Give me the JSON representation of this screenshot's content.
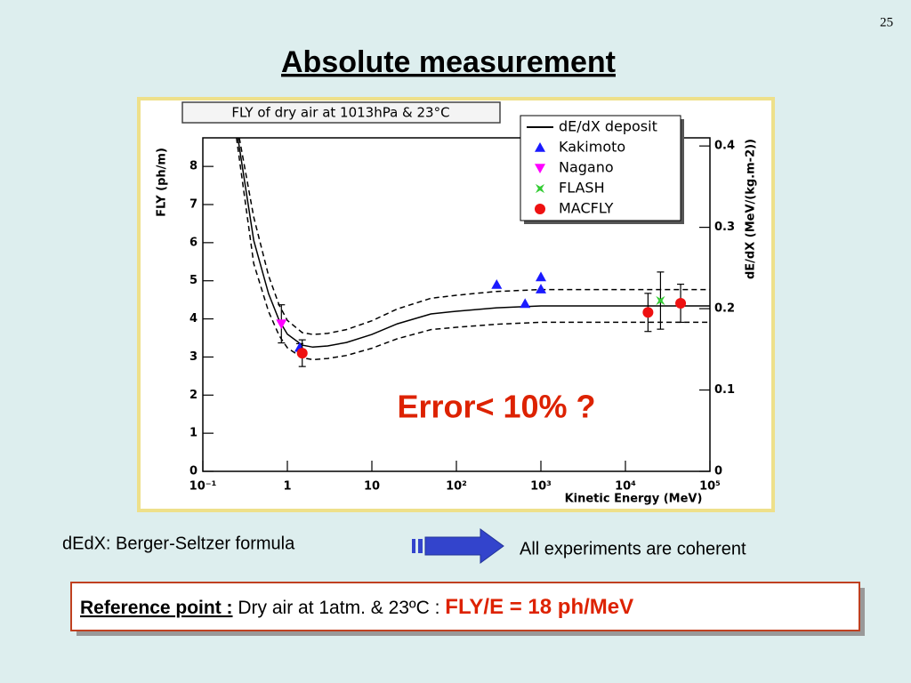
{
  "slide": {
    "page_number": "25",
    "title": "Absolute measurement",
    "left_note": "dEdX: Berger-Seltzer formula",
    "right_note": "All experiments are coherent",
    "reference": {
      "label": "Reference point :",
      "text": " Dry air at 1atm. & 23ºC : ",
      "result": "FLY/E = 18 ph/MeV"
    }
  },
  "chart_data": {
    "type": "scatter",
    "title": "FLY of dry air at 1013hPa & 23°C",
    "xlabel": "Kinetic Energy (MeV)",
    "ylabel": "FLY (ph/m)",
    "y2label": "dE/dX (MeV/(kg.m-2))",
    "annotation": "Error< 10% ?",
    "xscale": "log",
    "xlim": [
      0.1,
      100000
    ],
    "xticks": [
      {
        "value": 0.1,
        "label": "10⁻¹"
      },
      1,
      10,
      {
        "value": 100,
        "label": "10²"
      },
      {
        "value": 1000,
        "label": "10³"
      },
      {
        "value": 10000,
        "label": "10⁴"
      },
      {
        "value": 100000,
        "label": "10⁵"
      }
    ],
    "ylim": [
      0,
      8.75
    ],
    "yticks": [
      0,
      1,
      2,
      3,
      4,
      5,
      6,
      7,
      8
    ],
    "y2lim": [
      0,
      0.41
    ],
    "y2ticks": [
      0,
      0.1,
      0.2,
      0.3,
      0.4
    ],
    "curves": [
      {
        "name": "dE/dX deposit",
        "color": "#000000",
        "style": "solid",
        "x": [
          0.26,
          0.4,
          0.6,
          0.8,
          1,
          1.5,
          2,
          3,
          5,
          10,
          20,
          50,
          100,
          300,
          1000,
          10000,
          100000
        ],
        "values": [
          8.75,
          6.06,
          4.66,
          3.96,
          3.6,
          3.31,
          3.26,
          3.29,
          3.38,
          3.59,
          3.87,
          4.13,
          4.2,
          4.29,
          4.34,
          4.34,
          4.34
        ]
      },
      {
        "color": "#000000",
        "style": "dashed",
        "x": [
          0.27,
          0.4,
          0.6,
          0.8,
          1,
          1.5,
          2,
          3,
          5,
          10,
          20,
          50,
          100,
          300,
          1000,
          10000,
          100000
        ],
        "values": [
          8.75,
          6.67,
          5.13,
          4.36,
          3.96,
          3.64,
          3.59,
          3.62,
          3.72,
          3.95,
          4.26,
          4.54,
          4.62,
          4.72,
          4.77,
          4.77,
          4.77
        ]
      },
      {
        "color": "#000000",
        "style": "dashed",
        "x": [
          0.25,
          0.4,
          0.6,
          0.8,
          1,
          1.5,
          2,
          3,
          5,
          10,
          20,
          50,
          100,
          300,
          1000,
          10000,
          100000
        ],
        "values": [
          8.75,
          5.45,
          4.19,
          3.56,
          3.24,
          2.98,
          2.93,
          2.96,
          3.04,
          3.23,
          3.48,
          3.72,
          3.78,
          3.86,
          3.91,
          3.91,
          3.91
        ]
      }
    ],
    "series": [
      {
        "name": "Kakimoto",
        "color": "#1a1aff",
        "marker": "triangle-up",
        "x": [
          1.4,
          300,
          650,
          1000,
          1000
        ],
        "values": [
          3.25,
          4.9,
          4.4,
          5.1,
          4.78
        ],
        "errors": [
          0.1,
          null,
          null,
          null,
          null
        ]
      },
      {
        "name": "Nagano",
        "color": "#ff00ff",
        "marker": "triangle-down",
        "x": [
          0.85
        ],
        "values": [
          3.87
        ],
        "errors": [
          0.5
        ]
      },
      {
        "name": "FLASH",
        "color": "#33cc33",
        "marker": "star",
        "x": [
          26000
        ],
        "values": [
          4.48
        ],
        "errors": [
          0.75
        ]
      },
      {
        "name": "MACFLY",
        "color": "#ee1111",
        "marker": "circle",
        "x": [
          1.5,
          18500,
          45000
        ],
        "values": [
          3.1,
          4.17,
          4.41
        ],
        "errors": [
          0.35,
          0.5,
          0.5
        ]
      }
    ]
  }
}
